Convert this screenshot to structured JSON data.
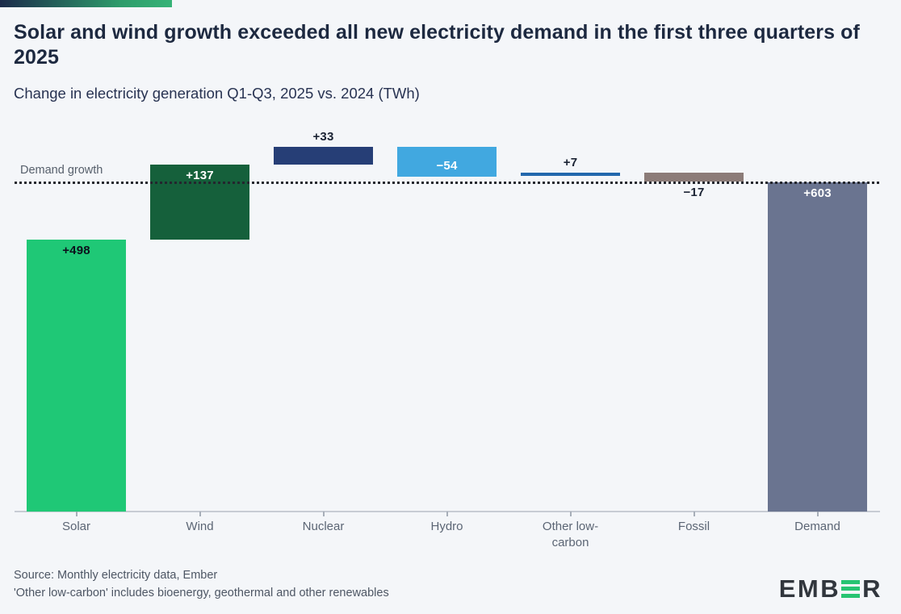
{
  "page": {
    "title": "Solar and wind growth exceeded all new electricity demand in the first three quarters of 2025",
    "subtitle": "Change in electricity generation Q1-Q3, 2025 vs. 2024 (TWh)",
    "background": "#f4f6f9",
    "accent_gradient_start": "#1c2b4a",
    "accent_gradient_end": "#36b377"
  },
  "chart_data": {
    "type": "bar",
    "subtype": "waterfall",
    "title": "Solar and wind growth exceeded all new electricity demand in the first three quarters of 2025",
    "subtitle": "Change in electricity generation Q1-Q3, 2025 vs. 2024 (TWh)",
    "unit": "TWh",
    "grid": "off",
    "demand_line": {
      "label": "Demand growth",
      "value": 603,
      "style": "dotted",
      "color": "#23262e"
    },
    "categories": [
      "Solar",
      "Wind",
      "Nuclear",
      "Hydro",
      "Other low-carbon",
      "Fossil",
      "Demand"
    ],
    "bars": [
      {
        "category": "Solar",
        "value": 498,
        "display": "+498",
        "color": "#1fc876",
        "label_color": "#0c111c",
        "label_pos": "inside-top"
      },
      {
        "category": "Wind",
        "value": 137,
        "display": "+137",
        "color": "#15603b",
        "label_color": "#ffffff",
        "label_pos": "inside-top"
      },
      {
        "category": "Nuclear",
        "value": 33,
        "display": "+33",
        "color": "#263e76",
        "label_color": "#1a2233",
        "label_pos": "above"
      },
      {
        "category": "Hydro",
        "value": -54,
        "display": "−54",
        "color": "#41a8e0",
        "label_color": "#ffffff",
        "label_pos": "inside-bottom"
      },
      {
        "category": "Other low-carbon",
        "value": 7,
        "display": "+7",
        "color": "#2268ad",
        "label_color": "#1a2233",
        "label_pos": "above"
      },
      {
        "category": "Fossil",
        "value": -17,
        "display": "−17",
        "color": "#8c7c78",
        "label_color": "#1a2233",
        "label_pos": "below"
      },
      {
        "category": "Demand",
        "value": 603,
        "display": "+603",
        "color": "#6a7490",
        "label_color": "#ffffff",
        "label_pos": "inside-top",
        "role": "total"
      }
    ]
  },
  "footer": {
    "source_line": "Source: Monthly electricity data, Ember",
    "note_line": "'Other low-carbon' includes bioenergy, geothermal and other renewables"
  },
  "logo": {
    "left_text": "EMB",
    "right_text": "R",
    "green": "#27c472",
    "e_icon": "ember-green-e-icon"
  }
}
